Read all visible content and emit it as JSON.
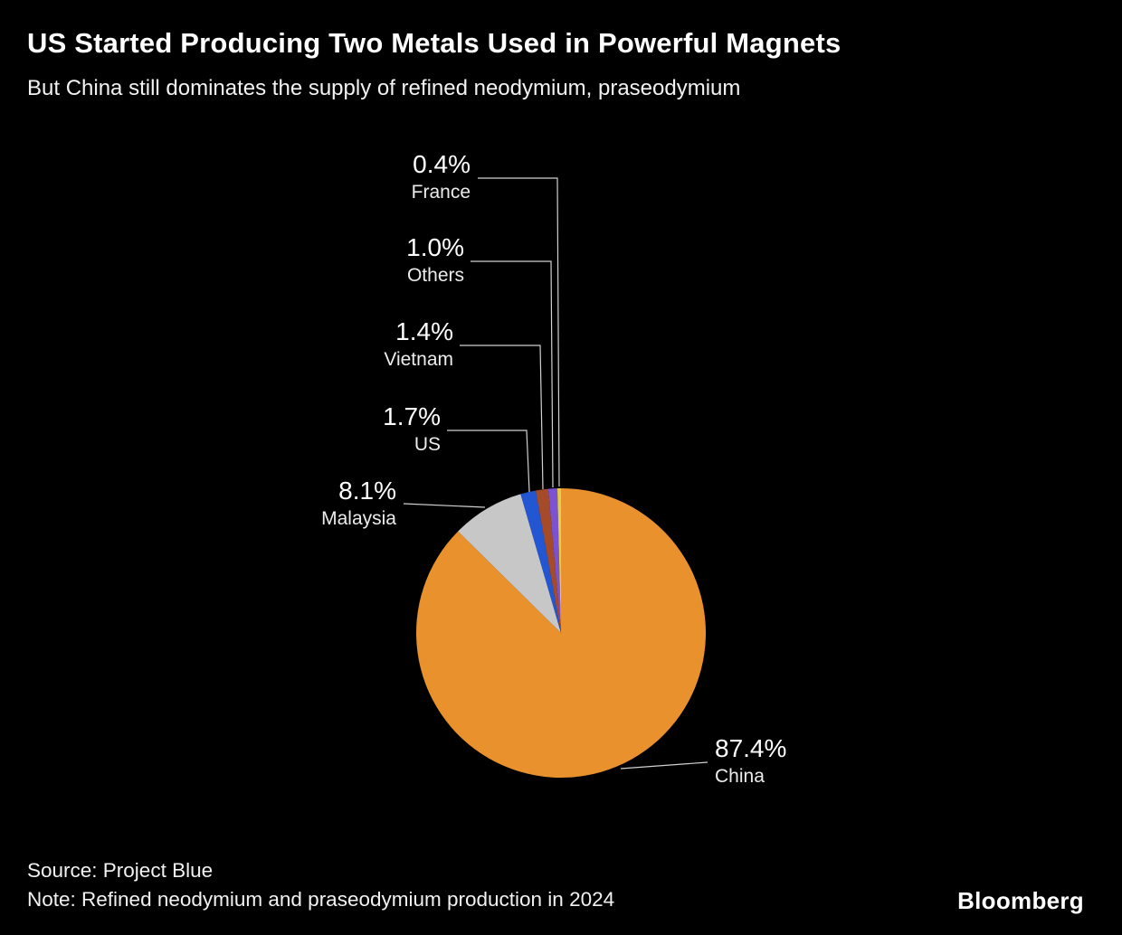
{
  "header": {
    "title": "US Started Producing Two Metals Used in Powerful Magnets",
    "subtitle": "But China still dominates the supply of refined neodymium, praseodymium"
  },
  "chart_data": {
    "type": "pie",
    "title": "Refined neodymium and praseodymium production share by country, 2024",
    "unit": "%",
    "direction": "clockwise",
    "start_angle_deg": 0,
    "legend_position": "callout-labels",
    "slices": [
      {
        "label": "China",
        "value": 87.4,
        "color": "#e8912d"
      },
      {
        "label": "Malaysia",
        "value": 8.1,
        "color": "#c7c7c7"
      },
      {
        "label": "US",
        "value": 1.7,
        "color": "#2256d3"
      },
      {
        "label": "Vietnam",
        "value": 1.4,
        "color": "#a64b2a"
      },
      {
        "label": "Others",
        "value": 1.0,
        "color": "#7b52d1"
      },
      {
        "label": "France",
        "value": 0.4,
        "color": "#e3ce49"
      }
    ]
  },
  "callouts": {
    "france": {
      "pct": "0.4%",
      "label": "France"
    },
    "others": {
      "pct": "1.0%",
      "label": "Others"
    },
    "vietnam": {
      "pct": "1.4%",
      "label": "Vietnam"
    },
    "us": {
      "pct": "1.7%",
      "label": "US"
    },
    "malaysia": {
      "pct": "8.1%",
      "label": "Malaysia"
    },
    "china": {
      "pct": "87.4%",
      "label": "China"
    }
  },
  "footer": {
    "source": "Source: Project Blue",
    "note": "Note: Refined neodymium and praseodymium production in 2024",
    "brand": "Bloomberg"
  }
}
